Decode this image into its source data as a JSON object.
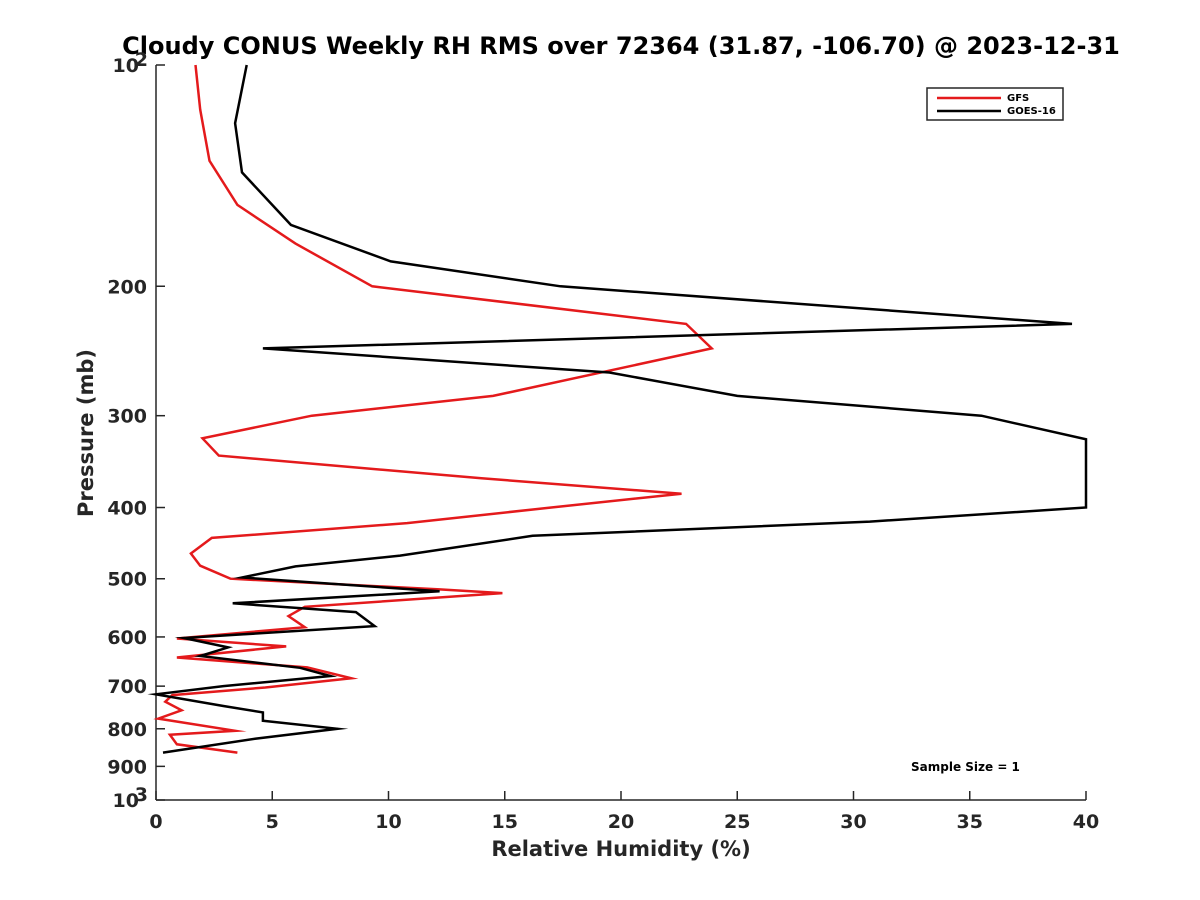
{
  "chart_data": {
    "type": "line",
    "title": "Cloudy CONUS Weekly RH RMS over 72364 (31.87, -106.70) @ 2023-12-31",
    "xlabel": "Relative Humidity (%)",
    "ylabel": "Pressure (mb)",
    "xlim": [
      0,
      40
    ],
    "ylim": [
      1000,
      100
    ],
    "yscale": "log",
    "y_reversed": true,
    "x_ticks": [
      0,
      5,
      10,
      15,
      20,
      25,
      30,
      35,
      40
    ],
    "x_tick_labels": [
      "0",
      "5",
      "10",
      "15",
      "20",
      "25",
      "30",
      "35",
      "40"
    ],
    "y_ticks": [
      100,
      200,
      300,
      400,
      500,
      600,
      700,
      800,
      900,
      1000
    ],
    "y_tick_labels": [
      {
        "base": "10",
        "exp": "2"
      },
      {
        "base": "200",
        "exp": ""
      },
      {
        "base": "300",
        "exp": ""
      },
      {
        "base": "400",
        "exp": ""
      },
      {
        "base": "500",
        "exp": ""
      },
      {
        "base": "600",
        "exp": ""
      },
      {
        "base": "700",
        "exp": ""
      },
      {
        "base": "800",
        "exp": ""
      },
      {
        "base": "900",
        "exp": ""
      },
      {
        "base": "10",
        "exp": "3"
      }
    ],
    "grid": false,
    "legend_position": "top-right",
    "annotation": "Sample Size = 1",
    "series": [
      {
        "name": "GFS",
        "color": "#e41a1c",
        "points": [
          [
            1.7,
            100
          ],
          [
            1.9,
            115
          ],
          [
            2.3,
            135
          ],
          [
            3.5,
            155
          ],
          [
            6.0,
            175
          ],
          [
            9.3,
            200
          ],
          [
            22.8,
            225
          ],
          [
            23.9,
            243
          ],
          [
            14.5,
            282
          ],
          [
            6.7,
            300
          ],
          [
            2.0,
            322
          ],
          [
            2.7,
            340
          ],
          [
            14.0,
            365
          ],
          [
            22.6,
            383
          ],
          [
            17.0,
            400
          ],
          [
            10.8,
            420
          ],
          [
            2.4,
            440
          ],
          [
            1.5,
            462
          ],
          [
            1.9,
            480
          ],
          [
            3.2,
            500
          ],
          [
            12.2,
            517
          ],
          [
            14.9,
            523
          ],
          [
            6.4,
            546
          ],
          [
            5.7,
            562
          ],
          [
            6.4,
            582
          ],
          [
            0.9,
            603
          ],
          [
            5.6,
            618
          ],
          [
            0.9,
            640
          ],
          [
            6.5,
            660
          ],
          [
            8.4,
            683
          ],
          [
            4.7,
            703
          ],
          [
            0.7,
            720
          ],
          [
            0.4,
            735
          ],
          [
            1.1,
            755
          ],
          [
            0.1,
            775
          ],
          [
            3.4,
            805
          ],
          [
            0.6,
            815
          ],
          [
            0.9,
            840
          ],
          [
            3.5,
            862
          ]
        ]
      },
      {
        "name": "GOES-16",
        "color": "#000000",
        "points": [
          [
            3.9,
            100
          ],
          [
            3.4,
            120
          ],
          [
            3.7,
            140
          ],
          [
            5.8,
            165
          ],
          [
            10.1,
            185
          ],
          [
            17.4,
            200
          ],
          [
            39.4,
            225
          ],
          [
            4.6,
            243
          ],
          [
            19.5,
            262
          ],
          [
            25.0,
            282
          ],
          [
            35.5,
            300
          ],
          [
            40.0,
            323
          ],
          [
            40.0,
            400
          ],
          [
            30.7,
            418
          ],
          [
            16.2,
            437
          ],
          [
            10.5,
            465
          ],
          [
            6.0,
            481
          ],
          [
            3.7,
            498
          ],
          [
            12.2,
            520
          ],
          [
            3.3,
            540
          ],
          [
            8.6,
            555
          ],
          [
            9.4,
            580
          ],
          [
            1.2,
            602
          ],
          [
            3.1,
            620
          ],
          [
            1.9,
            637
          ],
          [
            6.2,
            661
          ],
          [
            7.5,
            678
          ],
          [
            2.9,
            700
          ],
          [
            0.0,
            718
          ],
          [
            2.9,
            745
          ],
          [
            4.6,
            760
          ],
          [
            4.6,
            780
          ],
          [
            7.8,
            800
          ],
          [
            4.3,
            825
          ],
          [
            0.3,
            862
          ]
        ]
      }
    ]
  }
}
